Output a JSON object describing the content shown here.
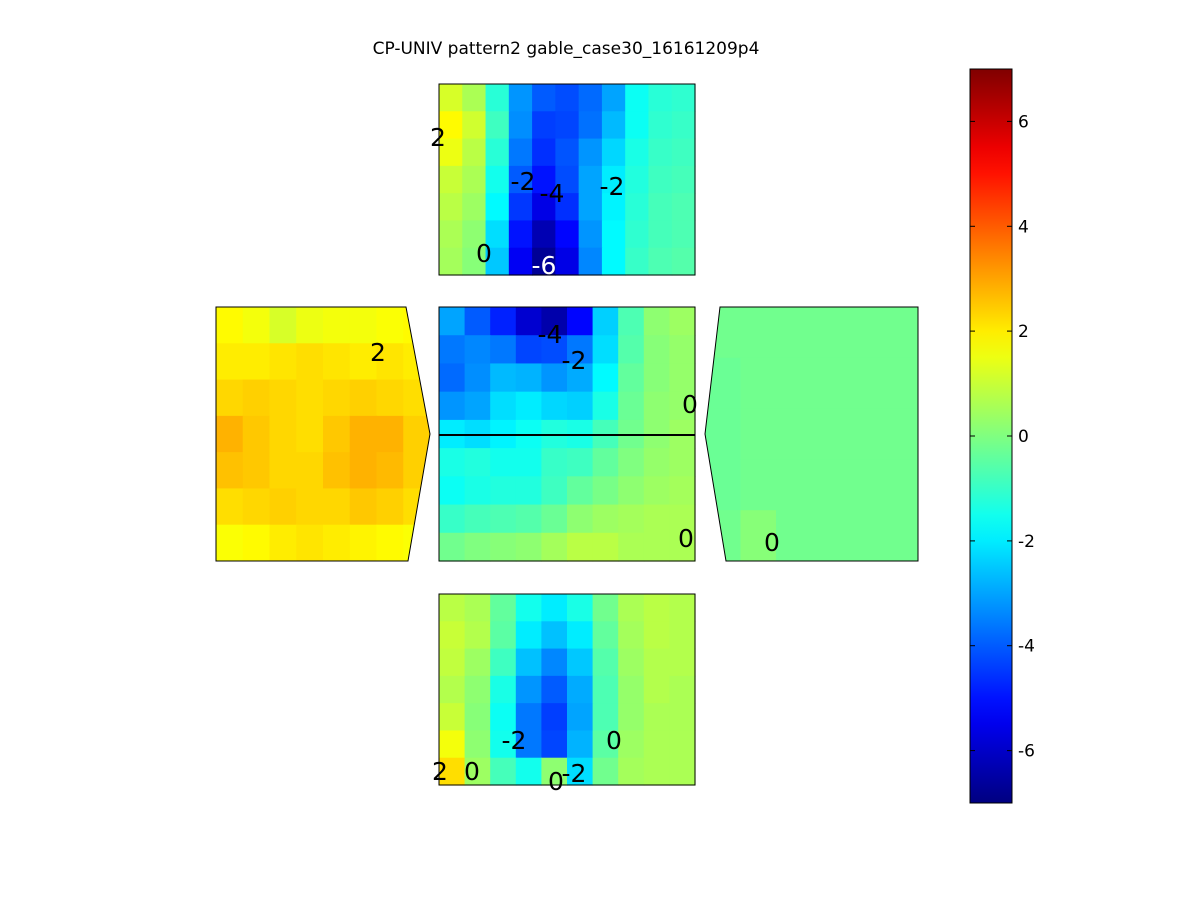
{
  "chart_data": {
    "type": "heatmap",
    "title": "CP-UNIV pattern2 gable_case30_16161209p4",
    "colormap": "jet",
    "colorbar": {
      "range": [
        -7,
        7
      ],
      "ticks": [
        6,
        4,
        2,
        0,
        -2,
        -4,
        -6
      ],
      "tick_labels": [
        "6",
        "4",
        "2",
        "0",
        "-2",
        "-4",
        "-6"
      ],
      "placement": "right"
    },
    "panels": [
      {
        "name": "top",
        "contour_labels": [
          "2",
          "-2",
          "-4",
          "-2",
          "0",
          "-6"
        ],
        "grid": [
          [
            1.2,
            0.6,
            -1.2,
            -3.2,
            -4.0,
            -4.2,
            -3.8,
            -3.0,
            -1.6,
            -1.2,
            -1.1
          ],
          [
            1.8,
            1.1,
            -0.9,
            -3.3,
            -4.4,
            -4.3,
            -3.7,
            -2.7,
            -1.6,
            -1.1,
            -1.0
          ],
          [
            1.5,
            0.8,
            -1.2,
            -3.6,
            -4.6,
            -4.1,
            -3.2,
            -2.3,
            -1.4,
            -1.0,
            -0.9
          ],
          [
            1.0,
            0.6,
            -1.5,
            -4.0,
            -5.0,
            -4.2,
            -3.0,
            -2.0,
            -1.3,
            -0.9,
            -0.8
          ],
          [
            0.8,
            0.4,
            -1.8,
            -4.5,
            -5.6,
            -4.6,
            -3.0,
            -1.9,
            -1.2,
            -0.8,
            -0.7
          ],
          [
            0.6,
            0.2,
            -2.2,
            -5.0,
            -6.3,
            -5.2,
            -3.2,
            -1.8,
            -1.1,
            -0.8,
            -0.7
          ],
          [
            0.5,
            0.1,
            -2.5,
            -5.4,
            -6.7,
            -5.6,
            -3.4,
            -1.8,
            -1.0,
            -0.7,
            -0.6
          ]
        ]
      },
      {
        "name": "middle",
        "contour_labels": [
          "-4",
          "-2",
          "0",
          "0"
        ],
        "grid": [
          [
            -3.0,
            -4.0,
            -4.8,
            -5.9,
            -6.4,
            -5.2,
            -2.4,
            -0.7,
            0.2,
            0.4
          ],
          [
            -3.6,
            -3.4,
            -3.6,
            -4.3,
            -4.2,
            -3.6,
            -2.2,
            -0.6,
            0.1,
            0.3
          ],
          [
            -3.8,
            -3.3,
            -2.7,
            -2.8,
            -3.2,
            -2.9,
            -1.8,
            -0.4,
            0.1,
            0.3
          ],
          [
            -3.2,
            -3.0,
            -2.2,
            -2.0,
            -2.3,
            -2.4,
            -1.4,
            -0.3,
            0.2,
            0.3
          ],
          [
            -2.0,
            -2.2,
            -1.9,
            -1.6,
            -1.3,
            -1.4,
            -0.8,
            -0.2,
            0.2,
            0.4
          ],
          [
            -1.4,
            -1.3,
            -1.5,
            -1.5,
            -1.0,
            -0.9,
            -0.4,
            0.0,
            0.3,
            0.4
          ],
          [
            -1.6,
            -1.4,
            -1.3,
            -1.3,
            -0.9,
            -0.4,
            -0.1,
            0.2,
            0.4,
            0.5
          ],
          [
            -1.0,
            -0.8,
            -0.7,
            -0.6,
            -0.3,
            0.2,
            0.4,
            0.5,
            0.6,
            0.6
          ],
          [
            -0.2,
            0.0,
            0.1,
            0.2,
            0.5,
            0.8,
            0.8,
            0.6,
            0.6,
            0.6
          ]
        ]
      },
      {
        "name": "left",
        "contour_labels": [
          "2"
        ],
        "grid": [
          [
            1.8,
            1.6,
            1.2,
            1.5,
            1.6,
            1.6,
            1.7,
            1.8
          ],
          [
            2.0,
            2.0,
            2.1,
            2.2,
            2.1,
            2.0,
            2.1,
            2.0
          ],
          [
            2.3,
            2.4,
            2.3,
            2.2,
            2.3,
            2.4,
            2.3,
            2.2
          ],
          [
            2.8,
            2.5,
            2.3,
            2.2,
            2.5,
            2.8,
            2.8,
            2.4
          ],
          [
            2.6,
            2.5,
            2.3,
            2.3,
            2.6,
            2.8,
            2.7,
            2.4
          ],
          [
            2.2,
            2.3,
            2.4,
            2.3,
            2.3,
            2.5,
            2.4,
            2.2
          ],
          [
            1.7,
            1.8,
            2.0,
            2.1,
            2.0,
            1.9,
            1.8,
            1.7
          ]
        ]
      },
      {
        "name": "right",
        "contour_labels": [
          "0"
        ],
        "grid": [
          [
            -0.2,
            -0.2,
            -0.2,
            -0.2,
            -0.2,
            -0.2
          ],
          [
            -0.3,
            -0.2,
            -0.2,
            -0.2,
            -0.2,
            -0.2
          ],
          [
            -0.3,
            -0.2,
            -0.2,
            -0.2,
            -0.2,
            -0.2
          ],
          [
            -0.3,
            -0.2,
            -0.2,
            -0.2,
            -0.2,
            -0.2
          ],
          [
            -0.2,
            0.1,
            -0.2,
            -0.2,
            -0.2,
            -0.2
          ]
        ]
      },
      {
        "name": "bottom",
        "contour_labels": [
          "-2",
          "0",
          "2",
          "0",
          "-2",
          "0"
        ],
        "grid": [
          [
            0.8,
            0.6,
            -0.4,
            -1.5,
            -2.0,
            -1.4,
            -0.2,
            0.6,
            0.8,
            0.7
          ],
          [
            1.0,
            0.7,
            -0.5,
            -2.0,
            -2.6,
            -2.0,
            -0.4,
            0.5,
            0.8,
            0.7
          ],
          [
            0.9,
            0.4,
            -0.9,
            -2.6,
            -3.4,
            -2.5,
            -0.6,
            0.4,
            0.7,
            0.7
          ],
          [
            0.7,
            0.2,
            -1.4,
            -3.2,
            -4.0,
            -2.9,
            -0.7,
            0.3,
            0.7,
            0.6
          ],
          [
            1.0,
            0.1,
            -1.6,
            -3.6,
            -4.4,
            -3.0,
            -0.7,
            0.3,
            0.6,
            0.6
          ],
          [
            1.6,
            0.2,
            -1.5,
            -3.6,
            -4.3,
            -2.8,
            -0.5,
            0.4,
            0.6,
            0.6
          ],
          [
            2.2,
            0.4,
            -0.8,
            -1.5,
            0.2,
            -2.2,
            -0.2,
            0.5,
            0.6,
            0.6
          ]
        ]
      }
    ]
  }
}
